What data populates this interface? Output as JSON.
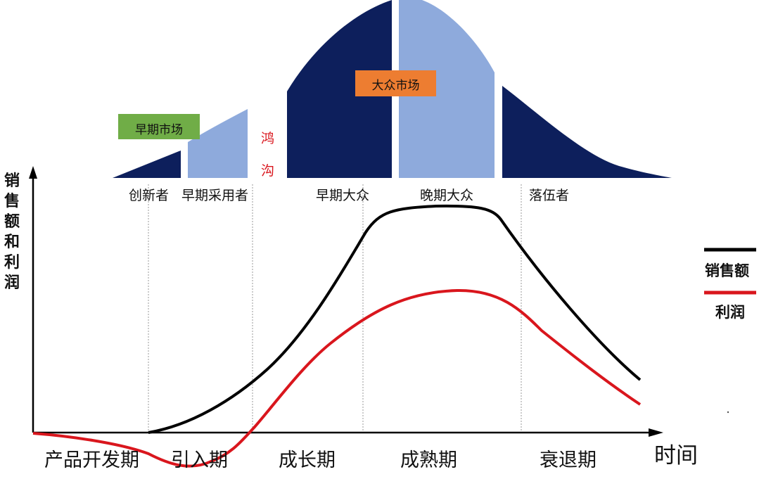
{
  "colors": {
    "dark_navy": "#0d1f5c",
    "light_blue": "#8eaadc",
    "green_badge": "#70ad47",
    "orange_badge": "#ed7d31",
    "sales_line": "#000000",
    "profit_line": "#d9161d",
    "chasm_text": "#d9161d"
  },
  "adoption": {
    "segments": [
      {
        "label": "创新者",
        "color": "dark_navy"
      },
      {
        "label": "早期采用者",
        "color": "light_blue"
      },
      {
        "label": "早期大众",
        "color": "dark_navy"
      },
      {
        "label": "晚期大众",
        "color": "light_blue"
      },
      {
        "label": "落伍者",
        "color": "dark_navy"
      }
    ],
    "early_market": "早期市场",
    "mass_market": "大众市场",
    "chasm": [
      "鸿",
      "沟"
    ]
  },
  "axes": {
    "y_label": [
      "销",
      "售",
      "额",
      "和",
      "利",
      "润"
    ],
    "x_label": "时间"
  },
  "phases": [
    "产品开发期",
    "引入期",
    "成长期",
    "成熟期",
    "衰退期"
  ],
  "legend": {
    "sales": "销售额",
    "profit": "利润"
  }
}
